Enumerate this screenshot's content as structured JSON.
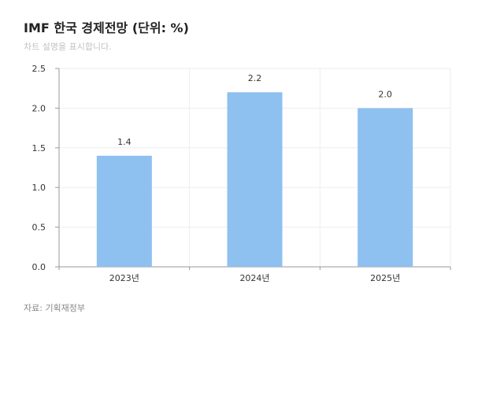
{
  "title": "IMF 한국 경제전망 (단위: %)",
  "subtitle": "차트 설명을 표시합니다.",
  "source": "자료: 기획재정부",
  "colors": {
    "bar": "#8ec0f0",
    "grid": "#eeeeee",
    "axis": "#999999"
  },
  "chart_data": {
    "type": "bar",
    "categories": [
      "2023년",
      "2024년",
      "2025년"
    ],
    "values": [
      1.4,
      2.2,
      2.0
    ],
    "data_labels": [
      "1.4",
      "2.2",
      "2.0"
    ],
    "y_ticks": [
      "0.0",
      "0.5",
      "1.0",
      "1.5",
      "2.0",
      "2.5"
    ],
    "ylim": [
      0,
      2.5
    ],
    "grid": true,
    "legend": "none"
  }
}
